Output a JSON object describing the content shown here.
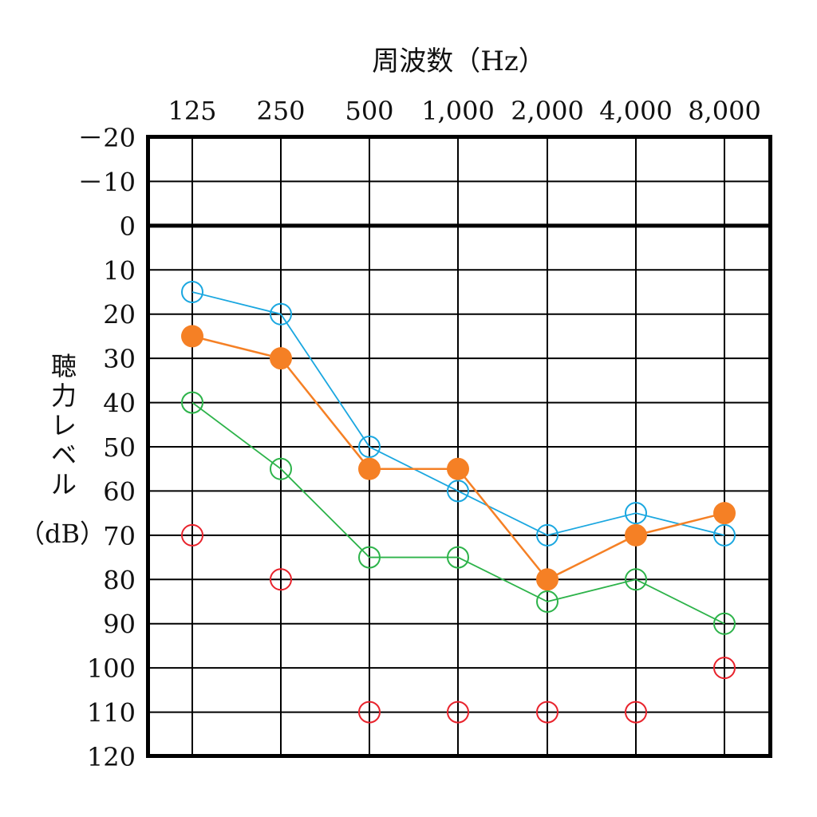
{
  "chart_data": {
    "type": "line",
    "title": "",
    "xlabel": "周波数（Hz）",
    "ylabel_chars": [
      "聴",
      "力",
      "レ",
      "ベ",
      "ル"
    ],
    "ylabel_unit": "（dB）",
    "x_categories": [
      "125",
      "250",
      "500",
      "1,000",
      "2,000",
      "4,000",
      "8,000"
    ],
    "y_ticks": [
      "－20",
      "－10",
      "0",
      "10",
      "20",
      "30",
      "40",
      "50",
      "60",
      "70",
      "80",
      "90",
      "100",
      "110",
      "120"
    ],
    "y_tick_values": [
      -20,
      -10,
      0,
      10,
      20,
      30,
      40,
      50,
      60,
      70,
      80,
      90,
      100,
      110,
      120
    ],
    "ylim": [
      -20,
      120
    ],
    "y_inverted": true,
    "grid": true,
    "series": [
      {
        "name": "blue",
        "color": "#1aa7e0",
        "marker": "open-circle",
        "line": true,
        "values": [
          15,
          20,
          50,
          60,
          70,
          65,
          70
        ]
      },
      {
        "name": "orange",
        "color": "#f58025",
        "marker": "filled-circle",
        "line": true,
        "values": [
          25,
          30,
          55,
          55,
          80,
          70,
          65
        ]
      },
      {
        "name": "green",
        "color": "#2db34a",
        "marker": "open-circle",
        "line": true,
        "values": [
          40,
          55,
          75,
          75,
          85,
          80,
          90
        ]
      },
      {
        "name": "red",
        "color": "#e8232c",
        "marker": "open-circle",
        "line": false,
        "values": [
          70,
          80,
          110,
          110,
          110,
          110,
          100
        ]
      }
    ]
  }
}
